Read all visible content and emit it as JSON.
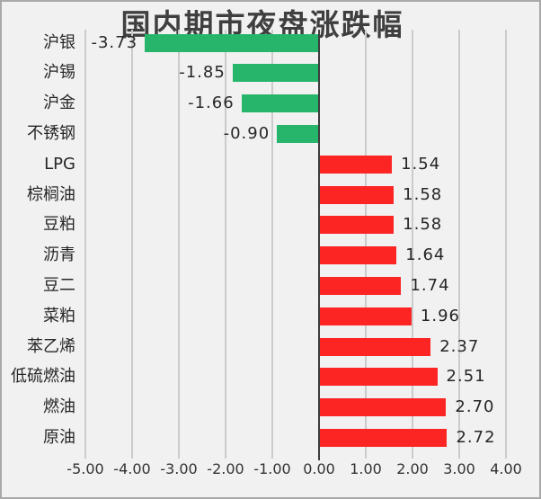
{
  "chart_data": {
    "type": "bar",
    "orientation": "horizontal",
    "title": "国内期市夜盘涨跌幅",
    "categories": [
      "沪银",
      "沪锡",
      "沪金",
      "不锈钢",
      "LPG",
      "棕榈油",
      "豆粕",
      "沥青",
      "豆二",
      "菜粕",
      "苯乙烯",
      "低硫燃油",
      "燃油",
      "原油"
    ],
    "values": [
      -3.73,
      -1.85,
      -1.66,
      -0.9,
      1.54,
      1.58,
      1.58,
      1.64,
      1.74,
      1.96,
      2.37,
      2.51,
      2.7,
      2.72
    ],
    "value_labels": [
      "-3.73",
      "-1.85",
      "-1.66",
      "-0.90",
      "1.54",
      "1.58",
      "1.58",
      "1.64",
      "1.74",
      "1.96",
      "2.37",
      "2.51",
      "2.70",
      "2.72"
    ],
    "x_ticks": [
      {
        "value": -5,
        "label": "-5.00"
      },
      {
        "value": -4,
        "label": "-4.00"
      },
      {
        "value": -3,
        "label": "-3.00"
      },
      {
        "value": -2,
        "label": "-2.00"
      },
      {
        "value": -1,
        "label": "-1.00"
      },
      {
        "value": 0,
        "label": "0.00"
      },
      {
        "value": 1,
        "label": "1.00"
      },
      {
        "value": 2,
        "label": "2.00"
      },
      {
        "value": 3,
        "label": "3.00"
      },
      {
        "value": 4,
        "label": "4.00"
      }
    ],
    "xlim": [
      -5.6,
      4.7
    ],
    "grid": true,
    "legend_position": "none",
    "bar_colors": {
      "positive": "#fc2524",
      "negative": "#27b56b"
    }
  },
  "style": {
    "background": "#f1f1f1",
    "border_color": "#a9a9a9",
    "grid_color": "#cbcbcb",
    "zero_line_color": "#3d3d3d",
    "title_color": "#3f3f3f",
    "label_color": "#262626",
    "tick_color": "#333333"
  }
}
